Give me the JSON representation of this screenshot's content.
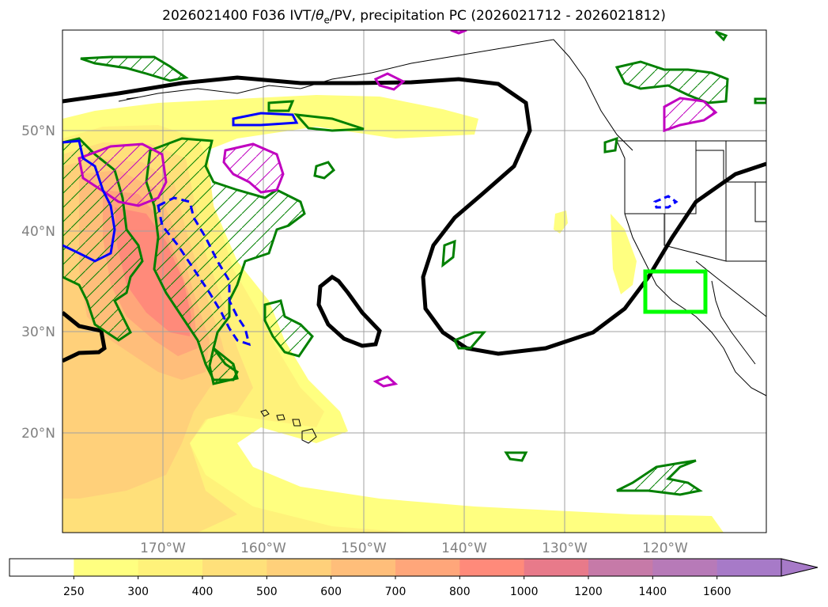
{
  "title": {
    "prefix": "2026021400 F036 IVT/",
    "theta_symbol": "θ",
    "theta_sub": "e",
    "suffix": "/PV, precipitation PC (2026021712 - 2026021812)"
  },
  "map": {
    "lon_range": [
      -180,
      -110
    ],
    "lat_range": [
      10,
      60
    ],
    "lat_ticks": [
      {
        "value": 20,
        "label": "20°N"
      },
      {
        "value": 30,
        "label": "30°N"
      },
      {
        "value": 40,
        "label": "40°N"
      },
      {
        "value": 50,
        "label": "50°N"
      }
    ],
    "lon_ticks": [
      {
        "value": -170,
        "label": "170°W"
      },
      {
        "value": -160,
        "label": "160°W"
      },
      {
        "value": -150,
        "label": "150°W"
      },
      {
        "value": -140,
        "label": "140°W"
      },
      {
        "value": -130,
        "label": "130°W"
      },
      {
        "value": -120,
        "label": "120°W"
      }
    ],
    "grid": true,
    "highlight_box": {
      "lon": [
        -122,
        -116
      ],
      "lat": [
        32,
        36
      ],
      "color": "#00ff00"
    }
  },
  "colorbar": {
    "levels": [
      "250",
      "300",
      "400",
      "500",
      "600",
      "700",
      "800",
      "1000",
      "1200",
      "1400",
      "1600"
    ],
    "colors": [
      "#ffffff",
      "#ffff80",
      "#fff27a",
      "#ffe07a",
      "#ffd07a",
      "#ffbe7a",
      "#ffa67a",
      "#ff8a7a",
      "#e87a8a",
      "#c67aa8",
      "#b77ab8",
      "#a77ac8"
    ],
    "extend": "max"
  },
  "colors": {
    "theta_e": "#000000",
    "pv_green": "#008000",
    "pv_magenta": "#c000c0",
    "pv_blue": "#0000ff"
  }
}
